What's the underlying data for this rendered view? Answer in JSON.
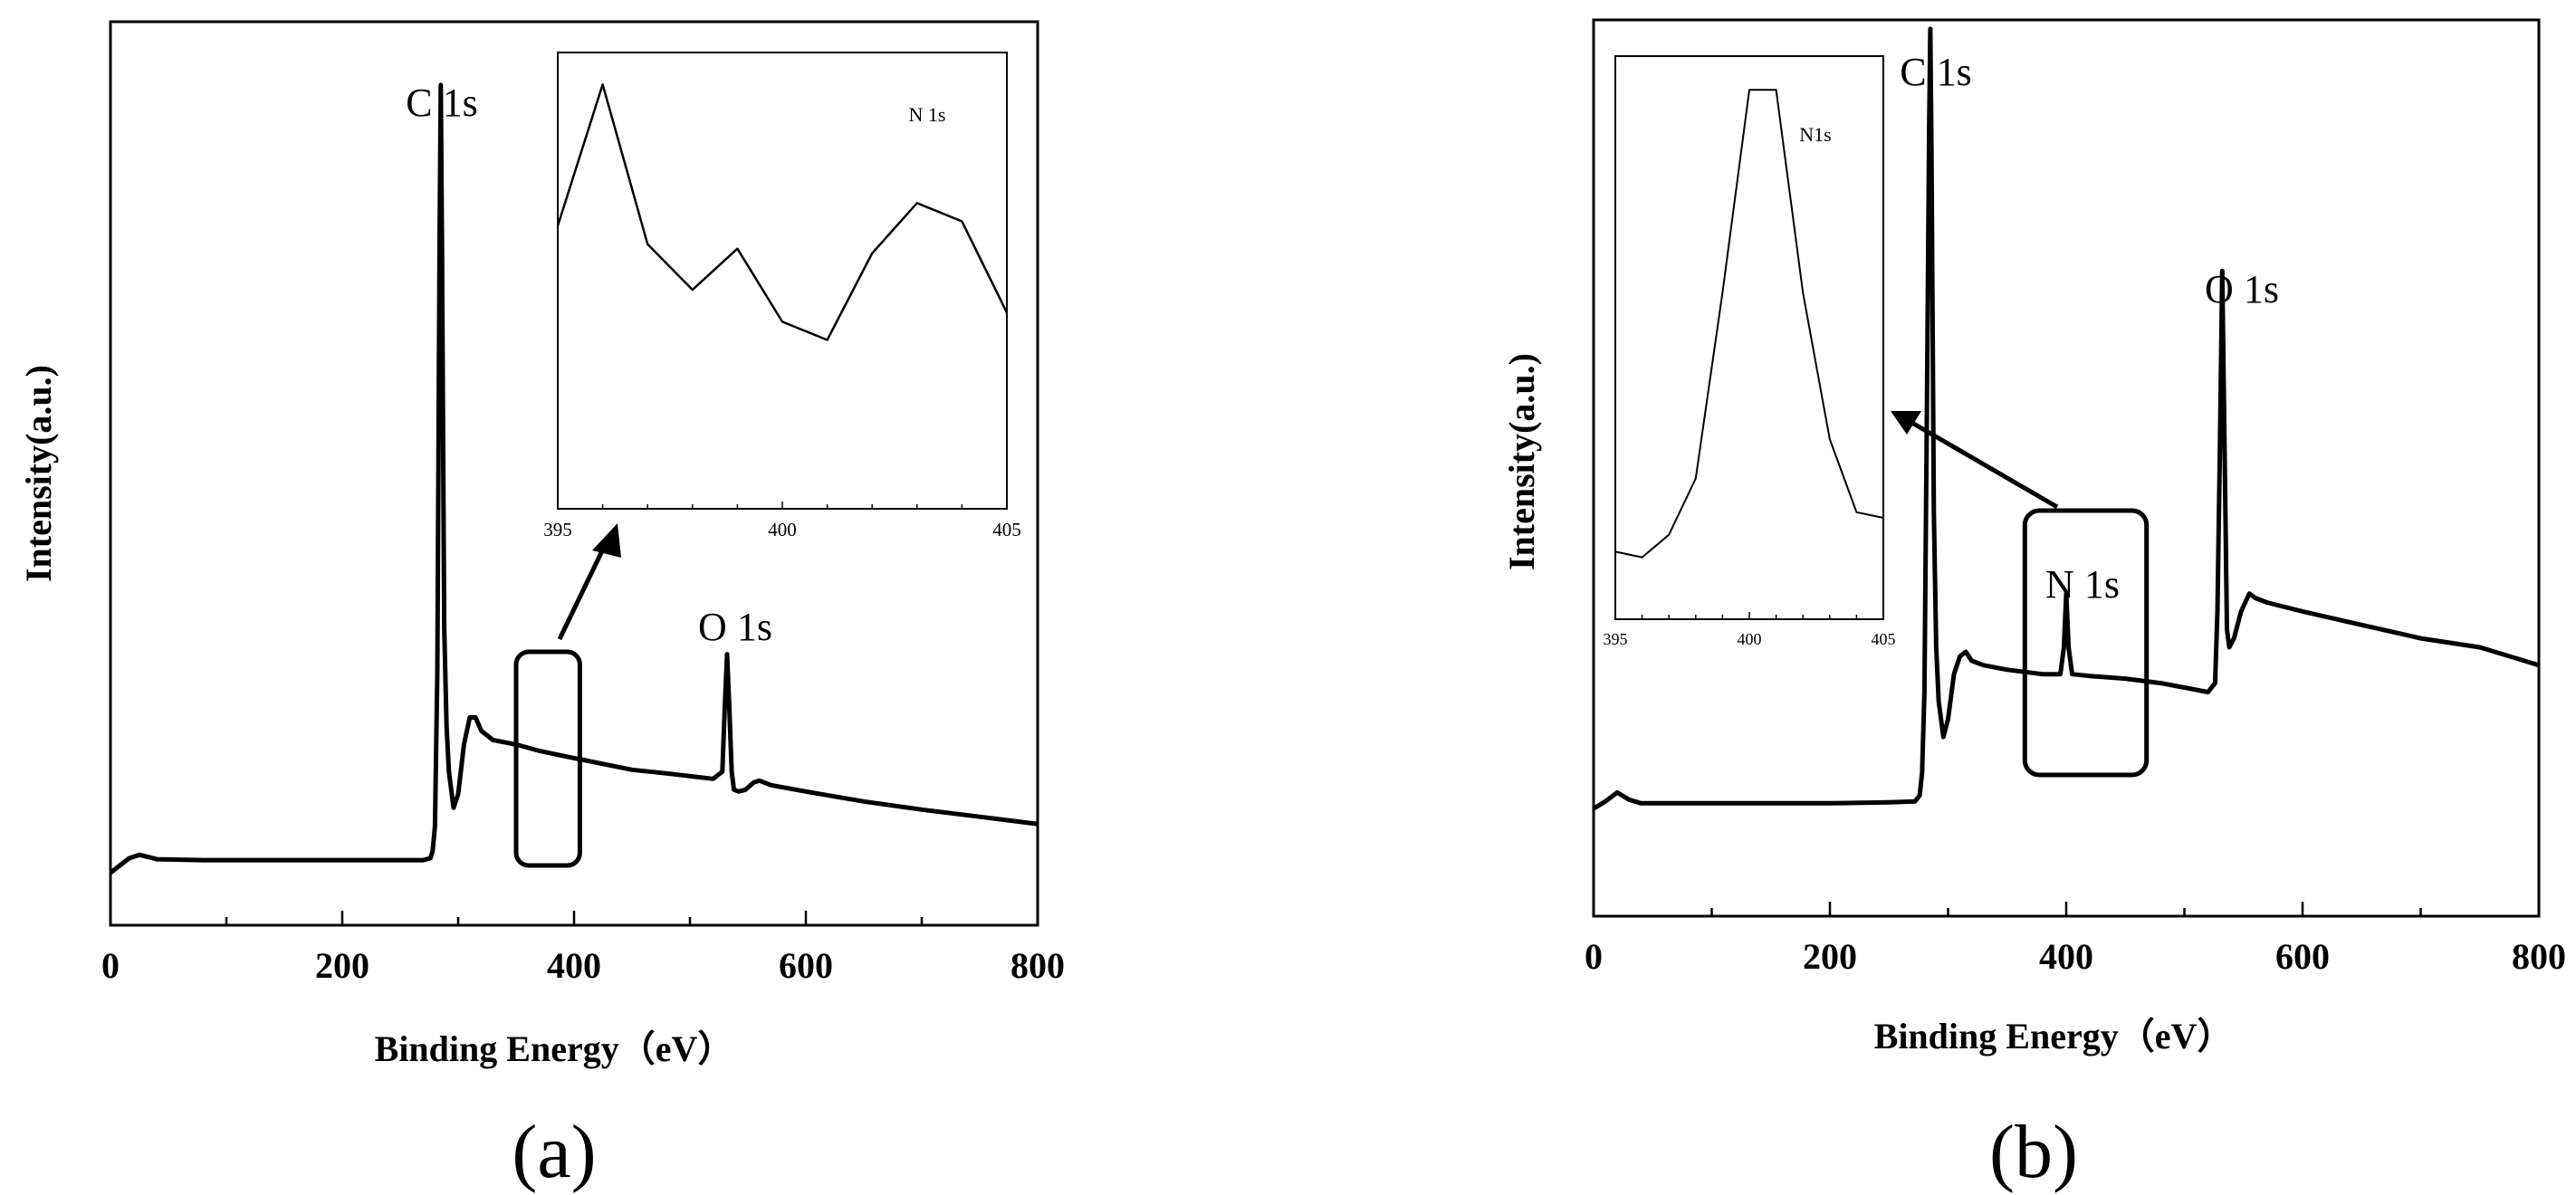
{
  "chart_data": [
    {
      "type": "line",
      "panel_label": "(a)",
      "xlabel": "Binding Energy（eV）",
      "ylabel": "Intensity(a.u.)",
      "xlim": [
        0,
        800
      ],
      "x_ticks": [
        0,
        200,
        400,
        600,
        800
      ],
      "ylim": [
        0,
        1
      ],
      "y_ticks_shown": false,
      "series": [
        {
          "name": "survey spectrum",
          "x": [
            0,
            8,
            16,
            25,
            40,
            80,
            150,
            200,
            250,
            270,
            276,
            278,
            280,
            282,
            284,
            285,
            286,
            288,
            290,
            292,
            296,
            300,
            305,
            310,
            315,
            320,
            330,
            350,
            370,
            400,
            450,
            480,
            500,
            520,
            528,
            530,
            532,
            534,
            536,
            538,
            542,
            548,
            555,
            560,
            570,
            600,
            650,
            700,
            750,
            800
          ],
          "y": [
            0.058,
            0.066,
            0.074,
            0.078,
            0.073,
            0.072,
            0.072,
            0.072,
            0.072,
            0.072,
            0.074,
            0.082,
            0.11,
            0.28,
            0.76,
            0.93,
            0.76,
            0.33,
            0.22,
            0.17,
            0.13,
            0.145,
            0.2,
            0.23,
            0.23,
            0.215,
            0.205,
            0.2,
            0.193,
            0.185,
            0.172,
            0.168,
            0.165,
            0.162,
            0.17,
            0.24,
            0.3,
            0.24,
            0.17,
            0.15,
            0.148,
            0.15,
            0.158,
            0.16,
            0.155,
            0.148,
            0.137,
            0.128,
            0.12,
            0.112
          ]
        }
      ],
      "annotations": {
        "c1s": "C 1s",
        "o1s": "O 1s"
      },
      "highlight_box_x": [
        350,
        405
      ],
      "inset": {
        "type": "line",
        "title": "N 1s",
        "xlim": [
          395,
          405
        ],
        "x_ticks": [
          395,
          400,
          405
        ],
        "x": [
          395,
          396,
          397,
          398,
          399,
          400,
          401,
          402,
          403,
          404,
          405
        ],
        "y": [
          0.62,
          0.93,
          0.58,
          0.48,
          0.57,
          0.41,
          0.37,
          0.56,
          0.67,
          0.63,
          0.43
        ],
        "ylim": [
          0,
          1
        ]
      }
    },
    {
      "type": "line",
      "panel_label": "(b)",
      "xlabel": "Binding Energy（eV）",
      "ylabel": "Intensity(a.u.)",
      "xlim": [
        0,
        800
      ],
      "x_ticks": [
        0,
        200,
        400,
        600,
        800
      ],
      "ylim": [
        0,
        1
      ],
      "y_ticks_shown": false,
      "series": [
        {
          "name": "survey spectrum",
          "x": [
            0,
            10,
            20,
            30,
            40,
            80,
            150,
            200,
            250,
            272,
            276,
            278,
            280,
            282,
            284,
            285,
            286,
            288,
            290,
            292,
            296,
            300,
            305,
            310,
            315,
            320,
            330,
            350,
            380,
            395,
            398,
            400,
            402,
            405,
            420,
            450,
            480,
            500,
            520,
            526,
            528,
            530,
            532,
            534,
            536,
            538,
            542,
            548,
            555,
            560,
            570,
            600,
            650,
            700,
            750,
            800
          ],
          "y": [
            0.12,
            0.128,
            0.138,
            0.13,
            0.126,
            0.126,
            0.126,
            0.126,
            0.127,
            0.128,
            0.135,
            0.16,
            0.25,
            0.55,
            0.88,
            0.99,
            0.85,
            0.45,
            0.3,
            0.24,
            0.2,
            0.22,
            0.27,
            0.29,
            0.295,
            0.285,
            0.28,
            0.275,
            0.27,
            0.27,
            0.3,
            0.36,
            0.3,
            0.27,
            0.268,
            0.265,
            0.26,
            0.255,
            0.25,
            0.26,
            0.34,
            0.52,
            0.72,
            0.52,
            0.32,
            0.3,
            0.31,
            0.34,
            0.36,
            0.355,
            0.35,
            0.34,
            0.325,
            0.31,
            0.3,
            0.28
          ]
        }
      ],
      "annotations": {
        "c1s": "C 1s",
        "n1s": "N 1s",
        "o1s": "O 1s"
      },
      "highlight_box_x": [
        365,
        468
      ],
      "inset": {
        "type": "line",
        "title": "N1s",
        "xlim": [
          395,
          405
        ],
        "x_ticks": [
          395,
          400,
          405
        ],
        "x": [
          395,
          396,
          397,
          398,
          399,
          400,
          401,
          402,
          403,
          404,
          405
        ],
        "y": [
          0.12,
          0.11,
          0.15,
          0.25,
          0.58,
          0.94,
          0.94,
          0.58,
          0.32,
          0.19,
          0.18
        ],
        "ylim": [
          0,
          1
        ]
      }
    }
  ]
}
